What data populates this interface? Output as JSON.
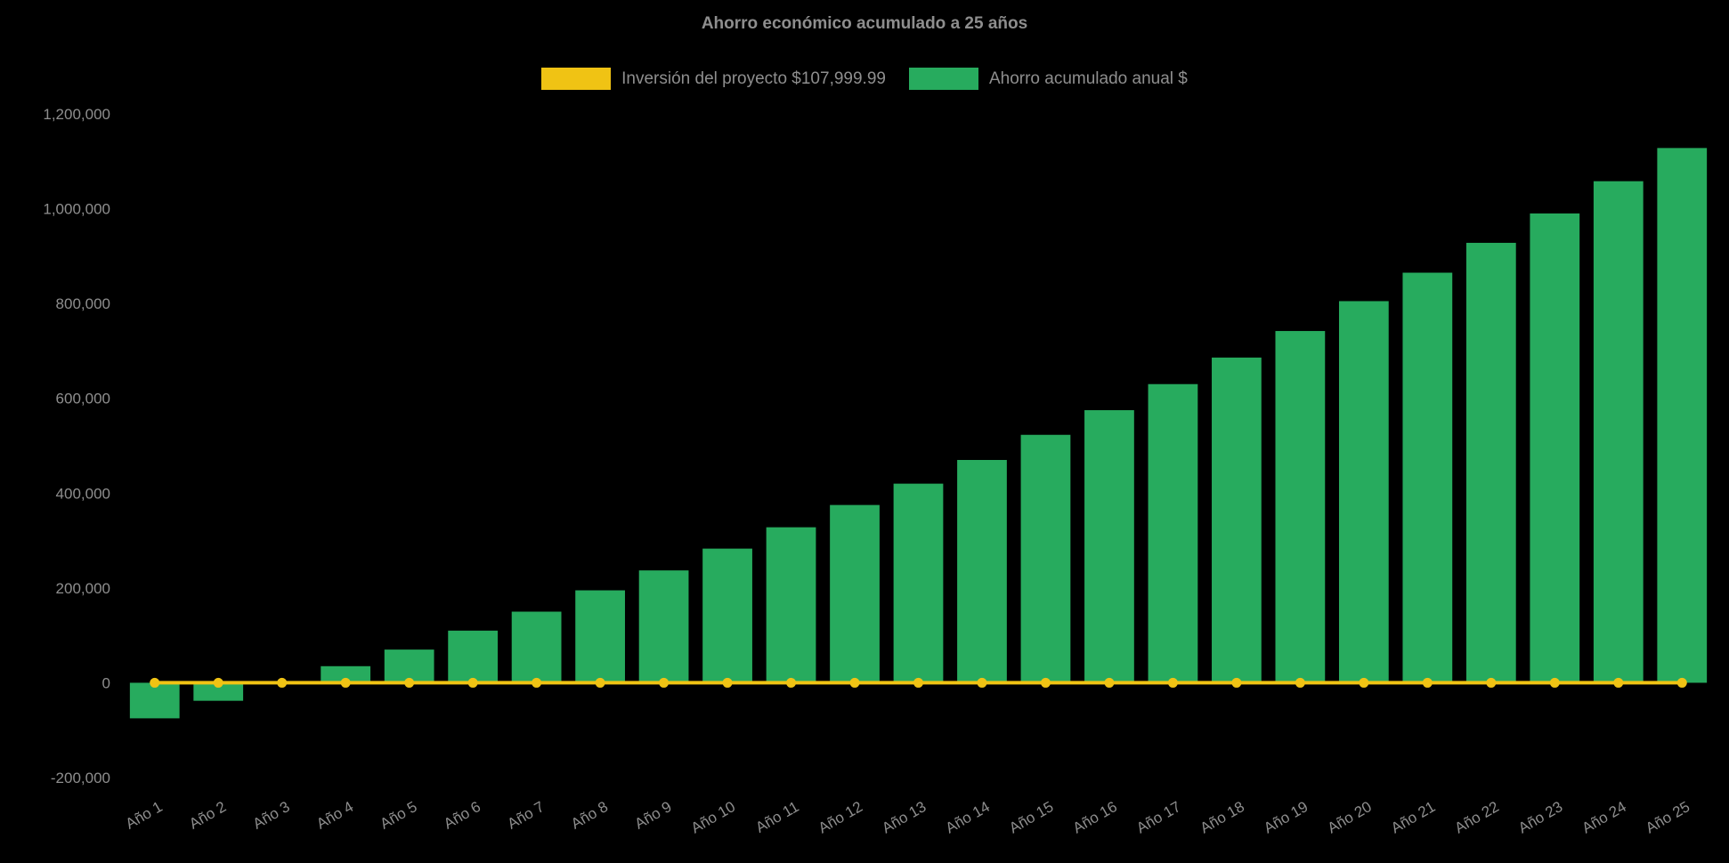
{
  "page": {
    "background": "#000000",
    "text_color": "#8e8e8e"
  },
  "chart_data": {
    "type": "bar",
    "title": "Ahorro económico acumulado a 25 años",
    "categories": [
      "Año 1",
      "Año 2",
      "Año 3",
      "Año 4",
      "Año 5",
      "Año 6",
      "Año 7",
      "Año 8",
      "Año 9",
      "Año 10",
      "Año 11",
      "Año 12",
      "Año 13",
      "Año 14",
      "Año 15",
      "Año 16",
      "Año 17",
      "Año 18",
      "Año 19",
      "Año 20",
      "Año 21",
      "Año 22",
      "Año 23",
      "Año 24",
      "Año 25"
    ],
    "series": [
      {
        "name": "Inversión del proyecto $107,999.99",
        "type": "line",
        "color": "#f0c314",
        "values": [
          0,
          0,
          0,
          0,
          0,
          0,
          0,
          0,
          0,
          0,
          0,
          0,
          0,
          0,
          0,
          0,
          0,
          0,
          0,
          0,
          0,
          0,
          0,
          0,
          0
        ]
      },
      {
        "name": "Ahorro acumulado anual $",
        "type": "bar",
        "color": "#27ab5e",
        "values": [
          -75000,
          -38000,
          2000,
          35000,
          70000,
          110000,
          150000,
          195000,
          237000,
          283000,
          328000,
          375000,
          420000,
          470000,
          523000,
          575000,
          630000,
          686000,
          742000,
          805000,
          865000,
          928000,
          990000,
          1058000,
          1128000
        ]
      }
    ],
    "ylim": [
      -200000,
      1200000
    ],
    "yticks": [
      -200000,
      0,
      200000,
      400000,
      600000,
      800000,
      1000000,
      1200000
    ],
    "ytick_labels": [
      "-200,000",
      "0",
      "200,000",
      "400,000",
      "600,000",
      "800,000",
      "1,000,000",
      "1,200,000"
    ],
    "grid": false,
    "legend_position": "top",
    "x_label_rotation": -30
  }
}
